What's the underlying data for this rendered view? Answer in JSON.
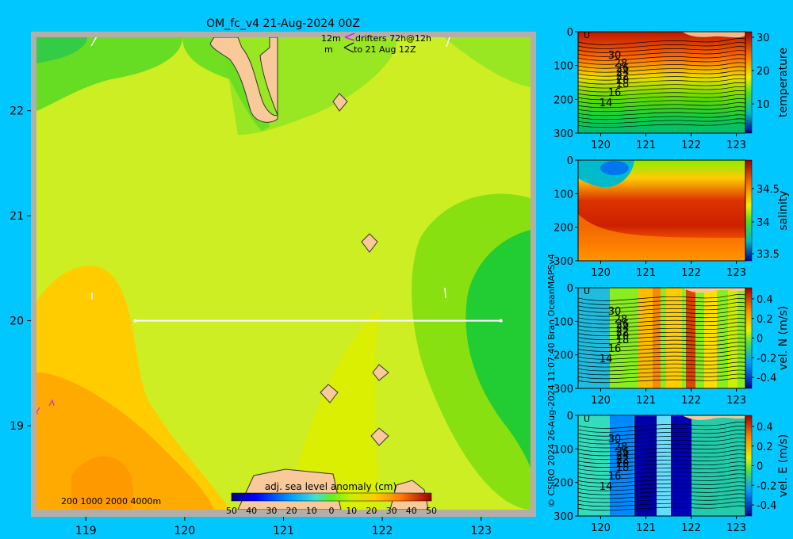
{
  "colors": {
    "background": "#00c7ff",
    "land": "#f9c99a",
    "coast_gray": "#b5aea8"
  },
  "chart_data": [
    {
      "type": "heatmap",
      "title": "OM_fc_v4  21-Aug-2024 00Z",
      "subtitle_lines": [
        "12m",
        "m",
        "drifters 72h@12h",
        "to 21 Aug 12Z"
      ],
      "x_ticks": [
        "119",
        "120",
        "121",
        "122",
        "123"
      ],
      "y_ticks": [
        "22",
        "21",
        "20",
        "19"
      ],
      "xlim": [
        118.5,
        123.5
      ],
      "ylim": [
        18.2,
        22.7
      ],
      "transect": {
        "x": [
          119.5,
          123.2
        ],
        "y": [
          20.0,
          20.0
        ]
      },
      "colorbar": {
        "label": "adj. sea level anomaly (cm)",
        "ticks": [
          "50",
          "40",
          "30",
          "20",
          "10",
          "0",
          "10",
          "20",
          "30",
          "40",
          "50"
        ],
        "range": [
          -50,
          50
        ]
      },
      "depth_legend": "200  1000  2000  4000m"
    },
    {
      "type": "heatmap",
      "ylabel": "temperature",
      "x_ticks": [
        "120",
        "121",
        "122",
        "123"
      ],
      "y_ticks": [
        "0",
        "100",
        "200",
        "300"
      ],
      "colorbar_ticks": [
        "30",
        "20",
        "10"
      ],
      "contour_labels": [
        "30",
        "28",
        "26",
        "24",
        "22",
        "20",
        "18",
        "16",
        "14"
      ]
    },
    {
      "type": "heatmap",
      "ylabel": "salinity",
      "x_ticks": [
        "120",
        "121",
        "122",
        "123"
      ],
      "y_ticks": [
        "0",
        "100",
        "200",
        "300"
      ],
      "colorbar_ticks": [
        "34.5",
        "34",
        "33.5"
      ]
    },
    {
      "type": "heatmap",
      "ylabel": "vel. N (m/s)",
      "x_ticks": [
        "120",
        "121",
        "122",
        "123"
      ],
      "y_ticks": [
        "0",
        "100",
        "200",
        "300"
      ],
      "colorbar_ticks": [
        "0.4",
        "0.2",
        "0",
        "-0.2",
        "-0.4"
      ],
      "contour_labels": [
        "30",
        "28",
        "26",
        "24",
        "22",
        "20",
        "18",
        "16",
        "14"
      ]
    },
    {
      "type": "heatmap",
      "ylabel": "vel. E (m/s)",
      "x_ticks": [
        "120",
        "121",
        "122",
        "123"
      ],
      "y_ticks": [
        "0",
        "100",
        "200",
        "300"
      ],
      "colorbar_ticks": [
        "0.4",
        "0.2",
        "0",
        "-0.2",
        "-0.4"
      ],
      "contour_labels": [
        "30",
        "28",
        "26",
        "24",
        "22",
        "20",
        "18",
        "16",
        "14"
      ]
    }
  ],
  "credit": "© CSIRO 2024    26-Aug-2024 11:07:40 Bran OceanMAPSv4"
}
